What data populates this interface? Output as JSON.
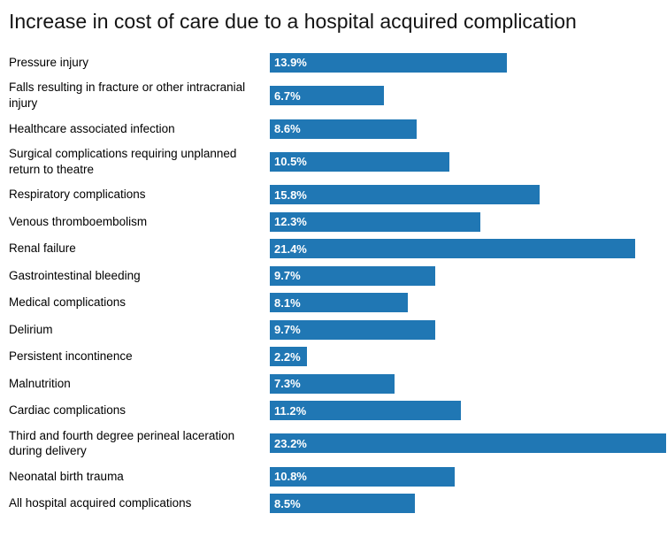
{
  "chart_data": {
    "type": "bar",
    "orientation": "horizontal",
    "title": "Increase in cost of care due to a hospital acquired complication",
    "categories": [
      "Pressure injury",
      "Falls resulting in fracture or other intracranial injury",
      "Healthcare associated infection",
      "Surgical complications requiring unplanned return to theatre",
      "Respiratory complications",
      "Venous thromboembolism",
      "Renal failure",
      "Gastrointestinal bleeding",
      "Medical complications",
      "Delirium",
      "Persistent incontinence",
      "Malnutrition",
      "Cardiac complications",
      "Third and fourth degree perineal laceration during delivery",
      "Neonatal birth trauma",
      "All hospital acquired complications"
    ],
    "values": [
      13.9,
      6.7,
      8.6,
      10.5,
      15.8,
      12.3,
      21.4,
      9.7,
      8.1,
      9.7,
      2.2,
      7.3,
      11.2,
      23.2,
      10.8,
      8.5
    ],
    "value_labels": [
      "13.9%",
      "6.7%",
      "8.6%",
      "10.5%",
      "15.8%",
      "12.3%",
      "21.4%",
      "9.7%",
      "8.1%",
      "9.7%",
      "2.2%",
      "7.3%",
      "11.2%",
      "23.2%",
      "10.8%",
      "8.5%"
    ],
    "xlabel": "",
    "ylabel": "",
    "xlim": [
      0,
      23.25
    ],
    "grid": false,
    "legend": false,
    "bar_color": "#2077b4",
    "value_label_color": "#ffffff"
  }
}
